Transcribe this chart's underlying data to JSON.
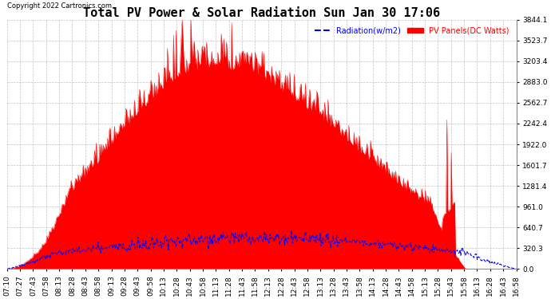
{
  "title": "Total PV Power & Solar Radiation Sun Jan 30 17:06",
  "copyright": "Copyright 2022 Cartronics.com",
  "legend_radiation": "Radiation(w/m2)",
  "legend_pv": "PV Panels(DC Watts)",
  "yticks": [
    0.0,
    320.3,
    640.7,
    961.0,
    1281.4,
    1601.7,
    1922.0,
    2242.4,
    2562.7,
    2883.0,
    3203.4,
    3523.7,
    3844.1
  ],
  "ymax": 3844.1,
  "background_color": "#ffffff",
  "plot_bg_color": "#ffffff",
  "grid_color": "#aaaaaa",
  "pv_color": "red",
  "radiation_color": "blue",
  "title_fontsize": 11,
  "tick_label_fontsize": 6.5,
  "xtick_times": [
    "07:10",
    "07:27",
    "07:43",
    "07:58",
    "08:13",
    "08:28",
    "08:43",
    "08:58",
    "09:13",
    "09:28",
    "09:43",
    "09:58",
    "10:13",
    "10:28",
    "10:43",
    "10:58",
    "11:13",
    "11:28",
    "11:43",
    "11:58",
    "12:13",
    "12:28",
    "12:43",
    "12:58",
    "13:13",
    "13:28",
    "13:43",
    "13:58",
    "14:13",
    "14:28",
    "14:43",
    "14:58",
    "15:13",
    "15:28",
    "15:43",
    "15:58",
    "16:13",
    "16:28",
    "16:43",
    "16:58"
  ]
}
